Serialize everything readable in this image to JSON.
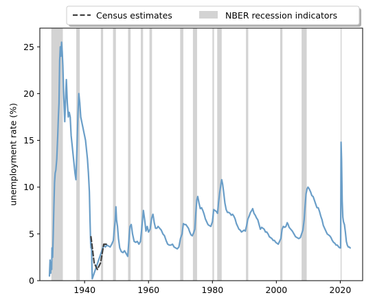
{
  "chart_data": {
    "type": "line",
    "title": "",
    "xlabel": "",
    "ylabel": "unemployment rate (%)",
    "xlim": [
      1926,
      2027
    ],
    "ylim": [
      0,
      27
    ],
    "xticks": [
      1940,
      1960,
      1980,
      2000,
      2020
    ],
    "yticks": [
      0,
      5,
      10,
      15,
      20,
      25
    ],
    "grid": false,
    "legend": {
      "placement": "top-center-outside",
      "entries": [
        "Census estimates",
        "NBER recession indicators"
      ]
    },
    "colors": {
      "main_series": "#6a9ec8",
      "census_series": "#404040",
      "recession_band": "#d3d3d3"
    },
    "recessions": [
      [
        1929.6,
        1933.2
      ],
      [
        1937.4,
        1938.5
      ],
      [
        1945.1,
        1945.8
      ],
      [
        1948.9,
        1949.8
      ],
      [
        1953.6,
        1954.4
      ],
      [
        1957.6,
        1958.3
      ],
      [
        1960.3,
        1961.1
      ],
      [
        1969.9,
        1970.9
      ],
      [
        1973.9,
        1975.2
      ],
      [
        1980.0,
        1980.5
      ],
      [
        1981.5,
        1982.9
      ],
      [
        1990.5,
        1991.2
      ],
      [
        2001.2,
        2001.9
      ],
      [
        2007.9,
        2009.5
      ],
      [
        2020.1,
        2020.4
      ]
    ],
    "series": [
      {
        "name": "",
        "style": "solid",
        "points": [
          [
            1929.0,
            0.5
          ],
          [
            1929.2,
            2.2
          ],
          [
            1929.4,
            0.8
          ],
          [
            1929.5,
            2.0
          ],
          [
            1929.7,
            1.2
          ],
          [
            1929.8,
            3.5
          ],
          [
            1930.0,
            2.5
          ],
          [
            1930.2,
            5.0
          ],
          [
            1930.4,
            8.0
          ],
          [
            1930.6,
            10.5
          ],
          [
            1930.8,
            11.5
          ],
          [
            1931.0,
            11.8
          ],
          [
            1931.3,
            13.0
          ],
          [
            1931.6,
            15.5
          ],
          [
            1931.8,
            17.5
          ],
          [
            1932.0,
            19.0
          ],
          [
            1932.2,
            23.5
          ],
          [
            1932.4,
            25.0
          ],
          [
            1932.6,
            24.0
          ],
          [
            1932.8,
            25.5
          ],
          [
            1933.0,
            24.5
          ],
          [
            1933.2,
            23.0
          ],
          [
            1933.5,
            19.5
          ],
          [
            1933.8,
            17.0
          ],
          [
            1934.0,
            19.0
          ],
          [
            1934.3,
            21.5
          ],
          [
            1934.6,
            19.0
          ],
          [
            1934.9,
            17.5
          ],
          [
            1935.2,
            18.0
          ],
          [
            1935.5,
            17.5
          ],
          [
            1935.8,
            15.5
          ],
          [
            1936.1,
            14.5
          ],
          [
            1936.4,
            13.5
          ],
          [
            1936.7,
            12.5
          ],
          [
            1937.0,
            11.5
          ],
          [
            1937.3,
            10.8
          ],
          [
            1937.6,
            14.0
          ],
          [
            1937.9,
            17.5
          ],
          [
            1938.2,
            20.0
          ],
          [
            1938.5,
            19.0
          ],
          [
            1938.8,
            17.5
          ],
          [
            1939.1,
            17.0
          ],
          [
            1939.4,
            16.5
          ],
          [
            1939.7,
            16.0
          ],
          [
            1940.0,
            15.5
          ],
          [
            1940.3,
            15.0
          ],
          [
            1940.6,
            14.0
          ],
          [
            1940.9,
            13.0
          ],
          [
            1941.2,
            11.5
          ],
          [
            1941.5,
            9.5
          ],
          [
            1941.7,
            6.5
          ],
          [
            1941.9,
            4.0
          ],
          [
            1942.0,
            3.5
          ],
          [
            1942.1,
            4.0
          ],
          [
            1942.2,
            3.3
          ],
          [
            1942.3,
            1.5
          ],
          [
            1942.4,
            0.2
          ],
          [
            1946.0,
            3.8
          ],
          [
            1946.5,
            3.6
          ],
          [
            1947.0,
            3.8
          ],
          [
            1947.5,
            3.7
          ],
          [
            1948.0,
            3.6
          ],
          [
            1948.5,
            3.9
          ],
          [
            1949.0,
            4.3
          ],
          [
            1949.3,
            5.5
          ],
          [
            1949.6,
            6.5
          ],
          [
            1949.8,
            7.9
          ],
          [
            1950.0,
            6.5
          ],
          [
            1950.3,
            5.8
          ],
          [
            1950.6,
            4.5
          ],
          [
            1951.0,
            3.5
          ],
          [
            1951.5,
            3.1
          ],
          [
            1952.0,
            3.0
          ],
          [
            1952.5,
            3.2
          ],
          [
            1953.0,
            2.9
          ],
          [
            1953.5,
            2.6
          ],
          [
            1953.9,
            4.5
          ],
          [
            1954.2,
            5.8
          ],
          [
            1954.6,
            6.0
          ],
          [
            1955.0,
            5.0
          ],
          [
            1955.5,
            4.2
          ],
          [
            1956.0,
            4.1
          ],
          [
            1956.5,
            4.2
          ],
          [
            1957.0,
            3.9
          ],
          [
            1957.5,
            4.2
          ],
          [
            1958.0,
            6.0
          ],
          [
            1958.4,
            7.5
          ],
          [
            1958.8,
            6.5
          ],
          [
            1959.2,
            5.3
          ],
          [
            1959.6,
            5.8
          ],
          [
            1960.0,
            5.2
          ],
          [
            1960.5,
            5.5
          ],
          [
            1961.0,
            6.7
          ],
          [
            1961.4,
            7.1
          ],
          [
            1961.8,
            6.2
          ],
          [
            1962.2,
            5.6
          ],
          [
            1962.6,
            5.6
          ],
          [
            1963.0,
            5.8
          ],
          [
            1963.5,
            5.6
          ],
          [
            1964.0,
            5.4
          ],
          [
            1964.5,
            5.0
          ],
          [
            1965.0,
            4.8
          ],
          [
            1965.5,
            4.3
          ],
          [
            1966.0,
            3.9
          ],
          [
            1966.5,
            3.8
          ],
          [
            1967.0,
            3.8
          ],
          [
            1967.5,
            3.9
          ],
          [
            1968.0,
            3.6
          ],
          [
            1968.5,
            3.5
          ],
          [
            1969.0,
            3.4
          ],
          [
            1969.5,
            3.6
          ],
          [
            1970.0,
            4.5
          ],
          [
            1970.5,
            5.0
          ],
          [
            1970.9,
            6.1
          ],
          [
            1971.3,
            6.0
          ],
          [
            1971.7,
            6.0
          ],
          [
            1972.1,
            5.8
          ],
          [
            1972.5,
            5.6
          ],
          [
            1972.9,
            5.2
          ],
          [
            1973.3,
            4.9
          ],
          [
            1973.7,
            4.8
          ],
          [
            1974.1,
            5.1
          ],
          [
            1974.5,
            5.5
          ],
          [
            1974.8,
            7.2
          ],
          [
            1975.1,
            8.6
          ],
          [
            1975.4,
            9.0
          ],
          [
            1975.8,
            8.3
          ],
          [
            1976.2,
            7.7
          ],
          [
            1976.6,
            7.8
          ],
          [
            1977.0,
            7.5
          ],
          [
            1977.4,
            7.1
          ],
          [
            1977.8,
            6.6
          ],
          [
            1978.2,
            6.3
          ],
          [
            1978.6,
            6.0
          ],
          [
            1979.0,
            5.9
          ],
          [
            1979.5,
            5.8
          ],
          [
            1980.0,
            6.3
          ],
          [
            1980.4,
            7.6
          ],
          [
            1980.8,
            7.5
          ],
          [
            1981.2,
            7.4
          ],
          [
            1981.6,
            7.2
          ],
          [
            1981.9,
            8.3
          ],
          [
            1982.3,
            9.5
          ],
          [
            1982.7,
            10.4
          ],
          [
            1982.9,
            10.8
          ],
          [
            1983.2,
            10.3
          ],
          [
            1983.5,
            9.5
          ],
          [
            1983.9,
            8.3
          ],
          [
            1984.3,
            7.6
          ],
          [
            1984.7,
            7.3
          ],
          [
            1985.1,
            7.3
          ],
          [
            1985.5,
            7.2
          ],
          [
            1985.9,
            7.0
          ],
          [
            1986.3,
            7.1
          ],
          [
            1986.7,
            6.9
          ],
          [
            1987.1,
            6.6
          ],
          [
            1987.5,
            6.1
          ],
          [
            1987.9,
            5.8
          ],
          [
            1988.3,
            5.5
          ],
          [
            1988.7,
            5.4
          ],
          [
            1989.1,
            5.2
          ],
          [
            1989.5,
            5.3
          ],
          [
            1989.9,
            5.4
          ],
          [
            1990.3,
            5.3
          ],
          [
            1990.7,
            5.9
          ],
          [
            1991.1,
            6.6
          ],
          [
            1991.5,
            6.9
          ],
          [
            1991.9,
            7.3
          ],
          [
            1992.3,
            7.5
          ],
          [
            1992.6,
            7.7
          ],
          [
            1993.0,
            7.2
          ],
          [
            1993.4,
            7.0
          ],
          [
            1993.8,
            6.7
          ],
          [
            1994.2,
            6.5
          ],
          [
            1994.6,
            6.0
          ],
          [
            1995.0,
            5.5
          ],
          [
            1995.4,
            5.7
          ],
          [
            1995.8,
            5.6
          ],
          [
            1996.2,
            5.5
          ],
          [
            1996.6,
            5.2
          ],
          [
            1997.0,
            5.2
          ],
          [
            1997.4,
            5.0
          ],
          [
            1997.8,
            4.7
          ],
          [
            1998.2,
            4.6
          ],
          [
            1998.6,
            4.5
          ],
          [
            1999.0,
            4.3
          ],
          [
            1999.4,
            4.3
          ],
          [
            1999.8,
            4.1
          ],
          [
            2000.2,
            4.0
          ],
          [
            2000.6,
            3.9
          ],
          [
            2001.0,
            4.2
          ],
          [
            2001.4,
            4.5
          ],
          [
            2001.8,
            5.5
          ],
          [
            2002.2,
            5.8
          ],
          [
            2002.6,
            5.7
          ],
          [
            2003.0,
            5.8
          ],
          [
            2003.4,
            6.2
          ],
          [
            2003.7,
            6.0
          ],
          [
            2004.0,
            5.7
          ],
          [
            2004.5,
            5.5
          ],
          [
            2005.0,
            5.3
          ],
          [
            2005.5,
            5.0
          ],
          [
            2006.0,
            4.7
          ],
          [
            2006.5,
            4.6
          ],
          [
            2007.0,
            4.5
          ],
          [
            2007.5,
            4.6
          ],
          [
            2007.9,
            5.0
          ],
          [
            2008.3,
            5.4
          ],
          [
            2008.7,
            6.5
          ],
          [
            2009.0,
            8.0
          ],
          [
            2009.3,
            9.3
          ],
          [
            2009.6,
            9.8
          ],
          [
            2009.9,
            10.0
          ],
          [
            2010.3,
            9.8
          ],
          [
            2010.7,
            9.5
          ],
          [
            2011.1,
            9.1
          ],
          [
            2011.5,
            9.0
          ],
          [
            2011.9,
            8.6
          ],
          [
            2012.3,
            8.2
          ],
          [
            2012.7,
            7.8
          ],
          [
            2013.1,
            7.8
          ],
          [
            2013.5,
            7.4
          ],
          [
            2013.9,
            6.9
          ],
          [
            2014.3,
            6.5
          ],
          [
            2014.7,
            5.9
          ],
          [
            2015.1,
            5.6
          ],
          [
            2015.5,
            5.3
          ],
          [
            2015.9,
            5.0
          ],
          [
            2016.3,
            4.9
          ],
          [
            2016.7,
            4.8
          ],
          [
            2017.1,
            4.6
          ],
          [
            2017.5,
            4.3
          ],
          [
            2017.9,
            4.1
          ],
          [
            2018.3,
            4.0
          ],
          [
            2018.7,
            3.8
          ],
          [
            2019.1,
            3.8
          ],
          [
            2019.5,
            3.6
          ],
          [
            2019.9,
            3.5
          ],
          [
            2020.1,
            3.5
          ],
          [
            2020.25,
            14.8
          ],
          [
            2020.4,
            13.0
          ],
          [
            2020.6,
            8.5
          ],
          [
            2020.8,
            6.8
          ],
          [
            2021.0,
            6.3
          ],
          [
            2021.3,
            6.0
          ],
          [
            2021.6,
            5.2
          ],
          [
            2021.9,
            4.2
          ],
          [
            2022.2,
            3.8
          ],
          [
            2022.5,
            3.6
          ],
          [
            2022.8,
            3.6
          ],
          [
            2023.1,
            3.5
          ]
        ]
      },
      {
        "name": "Census estimates",
        "style": "dashed",
        "points": [
          [
            1942.0,
            4.7
          ],
          [
            1943.0,
            1.9
          ],
          [
            1944.0,
            1.2
          ],
          [
            1945.0,
            1.9
          ],
          [
            1946.0,
            3.9
          ],
          [
            1947.0,
            3.9
          ]
        ]
      }
    ]
  }
}
